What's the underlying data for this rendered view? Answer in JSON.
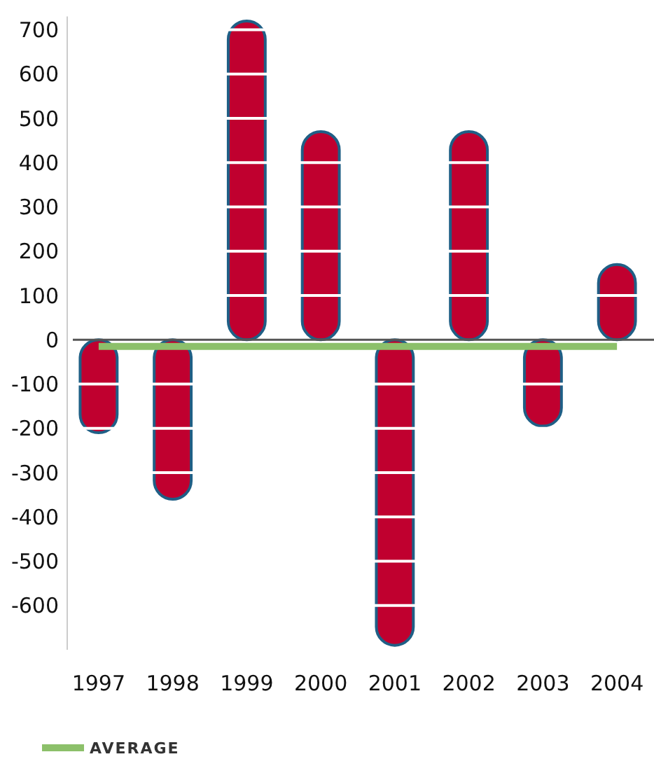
{
  "chart_data": {
    "type": "bar",
    "categories": [
      "1997",
      "1998",
      "1999",
      "2000",
      "2001",
      "2002",
      "2003",
      "2004"
    ],
    "series": [
      {
        "color": "#c0002f",
        "values": [
          -210,
          -360,
          720,
          470,
          -690,
          470,
          -195,
          170
        ]
      },
      {
        "type": "line",
        "name": "AVERAGE",
        "color": "#8cc06a",
        "values": [
          -15,
          -15,
          -15,
          -15,
          -15,
          -15,
          -15,
          -15
        ]
      }
    ],
    "ylim": [
      -700,
      730
    ],
    "yticks": [
      -600,
      -500,
      -400,
      -300,
      -200,
      -100,
      0,
      100,
      200,
      300,
      400,
      500,
      600,
      700
    ],
    "grid": "y",
    "legend": "bottom left"
  }
}
